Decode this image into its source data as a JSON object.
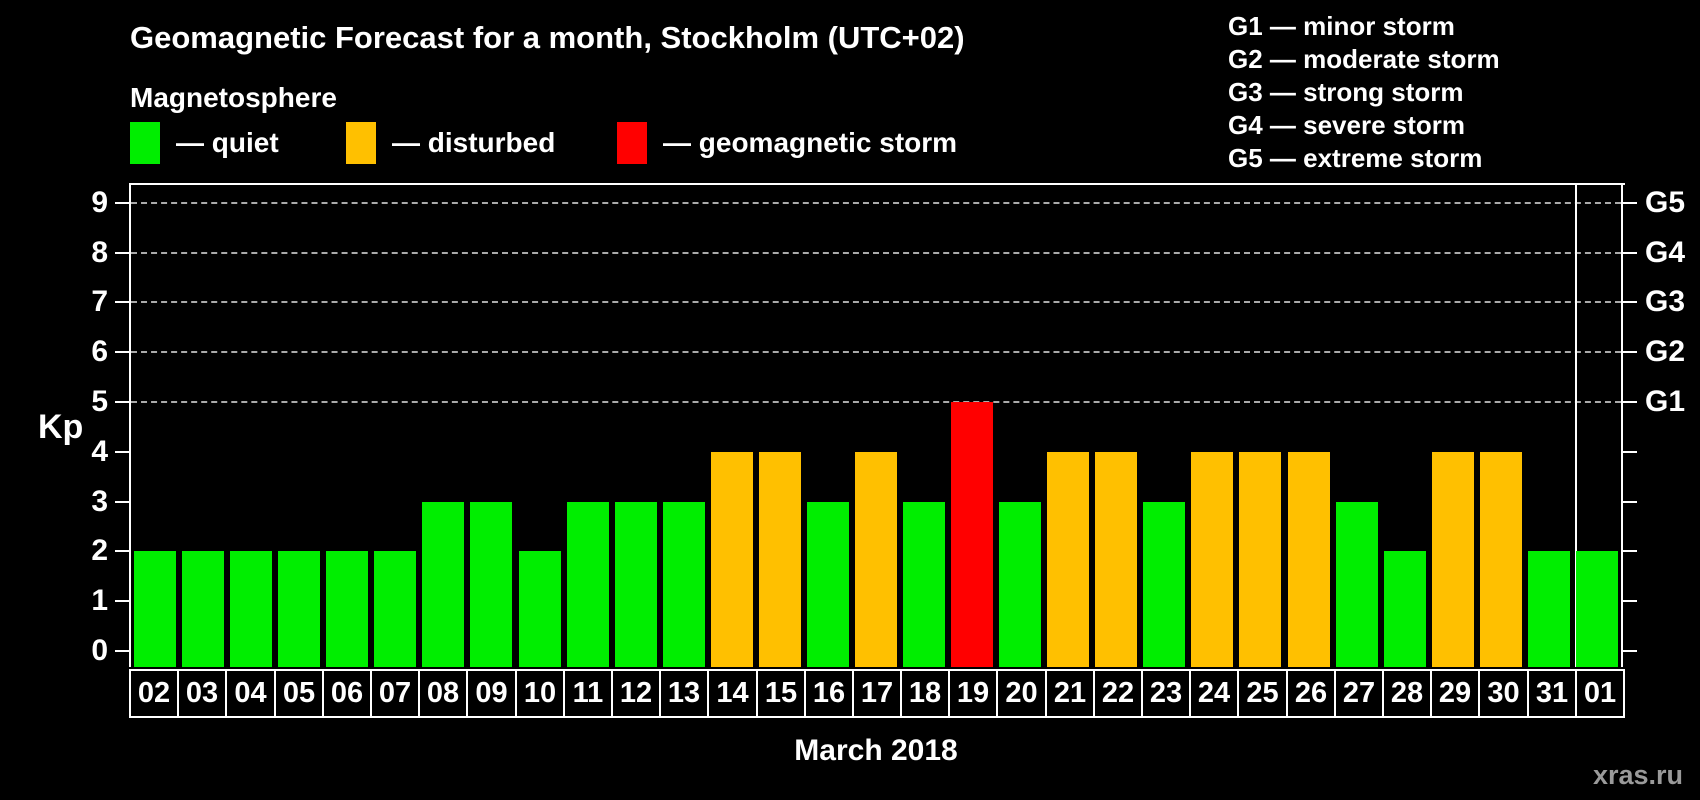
{
  "header": {
    "title": "Geomagnetic Forecast for a month, Stockholm (UTC+02)",
    "subtitle": "Magnetosphere"
  },
  "magnetosphere_legend": {
    "items": [
      {
        "name": "quiet",
        "label": "— quiet",
        "color": "#00ee00"
      },
      {
        "name": "disturbed",
        "label": "— disturbed",
        "color": "#ffc000"
      },
      {
        "name": "storm",
        "label": "— geomagnetic storm",
        "color": "#ff0000"
      }
    ]
  },
  "storm_scale_legend": {
    "items": [
      "G1 — minor storm",
      "G2 — moderate storm",
      "G3 — strong storm",
      "G4 — severe storm",
      "G5 — extreme storm"
    ]
  },
  "chart_data": {
    "type": "bar",
    "title": "Geomagnetic Forecast for a month, Stockholm (UTC+02)",
    "xlabel": "March 2018",
    "ylabel": "Kp",
    "ylim": [
      0,
      9.4
    ],
    "y_ticks": [
      0,
      1,
      2,
      3,
      4,
      5,
      6,
      7,
      8,
      9
    ],
    "grid_kp": [
      5,
      6,
      7,
      8,
      9
    ],
    "grid_style": "dashed-horizontal",
    "legend_position": "top-left",
    "categories": [
      "02",
      "03",
      "04",
      "05",
      "06",
      "07",
      "08",
      "09",
      "10",
      "11",
      "12",
      "13",
      "14",
      "15",
      "16",
      "17",
      "18",
      "19",
      "20",
      "21",
      "22",
      "23",
      "24",
      "25",
      "26",
      "27",
      "28",
      "29",
      "30",
      "31",
      "01"
    ],
    "values": [
      2,
      2,
      2,
      2,
      2,
      2,
      3,
      3,
      2,
      3,
      3,
      3,
      4,
      4,
      3,
      4,
      3,
      5,
      3,
      4,
      4,
      3,
      4,
      4,
      4,
      3,
      2,
      4,
      4,
      2,
      2
    ],
    "statuses": [
      "quiet",
      "quiet",
      "quiet",
      "quiet",
      "quiet",
      "quiet",
      "quiet",
      "quiet",
      "quiet",
      "quiet",
      "quiet",
      "quiet",
      "disturbed",
      "disturbed",
      "quiet",
      "disturbed",
      "quiet",
      "storm",
      "quiet",
      "disturbed",
      "disturbed",
      "quiet",
      "disturbed",
      "disturbed",
      "disturbed",
      "quiet",
      "quiet",
      "disturbed",
      "disturbed",
      "quiet",
      "quiet"
    ],
    "status_colors": {
      "quiet": "#00ee00",
      "disturbed": "#ffc000",
      "storm": "#ff0000"
    },
    "right_axis_labels": [
      {
        "kp": 5,
        "label": "G1"
      },
      {
        "kp": 6,
        "label": "G2"
      },
      {
        "kp": 7,
        "label": "G3"
      },
      {
        "kp": 8,
        "label": "G4"
      },
      {
        "kp": 9,
        "label": "G5"
      }
    ],
    "month_separator_before_category": "01",
    "axis_color": "#ffffff",
    "grid_color": "#aaaaaa"
  },
  "footer": {
    "watermark": "xras.ru"
  }
}
